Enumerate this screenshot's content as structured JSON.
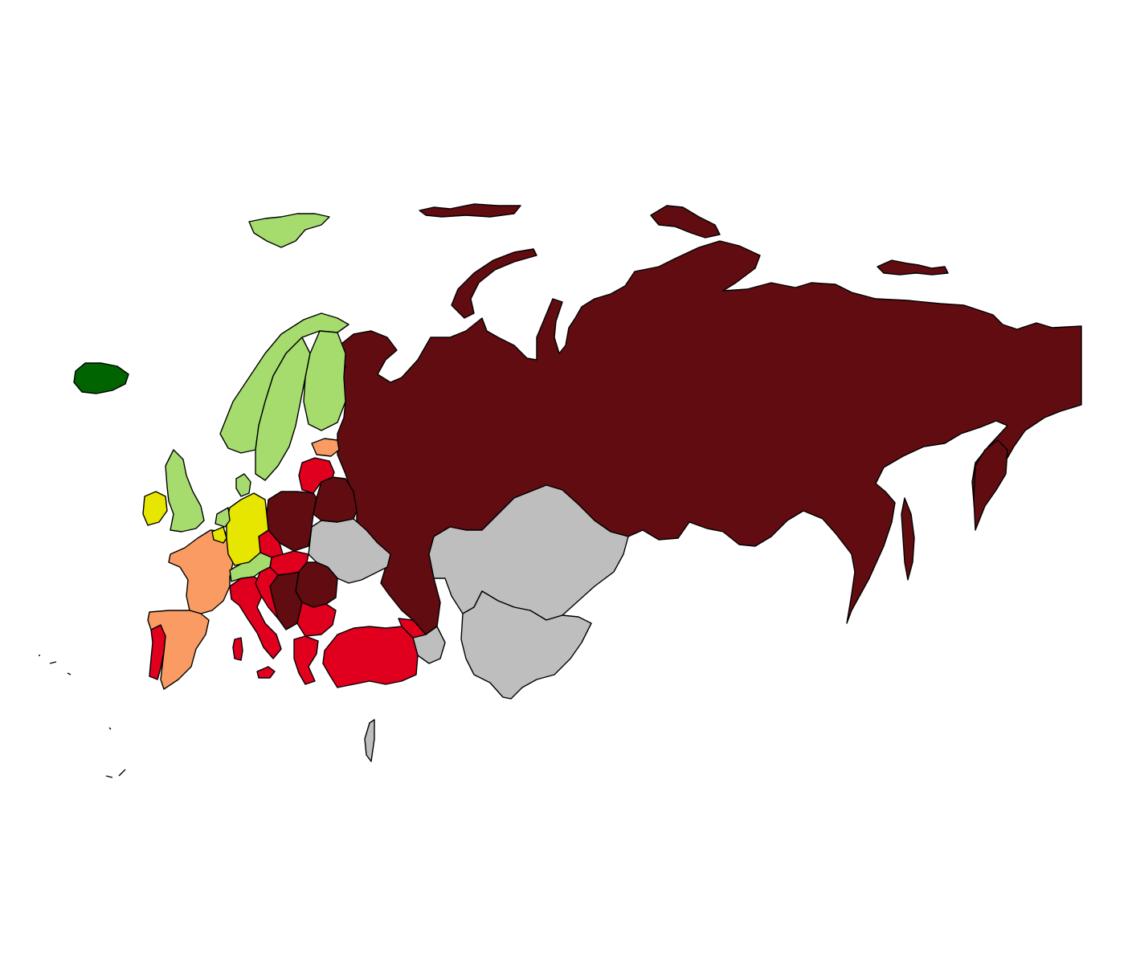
{
  "palette": {
    "dark_green": "#006400",
    "light_green": "#a6dc6e",
    "yellow": "#e6e600",
    "orange": "#f99b62",
    "red": "#e0001e",
    "dark_red": "#600c10",
    "no_data": "#bebebe",
    "border": "#000000",
    "background": "#ffffff"
  },
  "regions": [
    {
      "name": "russia",
      "fill": "dark_red"
    },
    {
      "name": "novaya-zemlya",
      "fill": "dark_red"
    },
    {
      "name": "franz-josef-land",
      "fill": "dark_red"
    },
    {
      "name": "severnaya-zemlya",
      "fill": "dark_red"
    },
    {
      "name": "new-siberian-islands",
      "fill": "dark_red"
    },
    {
      "name": "sakhalin",
      "fill": "dark_red"
    },
    {
      "name": "kamchatka",
      "fill": "dark_red"
    },
    {
      "name": "belarus",
      "fill": "dark_red"
    },
    {
      "name": "poland",
      "fill": "dark_red"
    },
    {
      "name": "romania",
      "fill": "dark_red"
    },
    {
      "name": "serbia",
      "fill": "dark_red"
    },
    {
      "name": "kazakhstan",
      "fill": "no_data"
    },
    {
      "name": "central-asia",
      "fill": "no_data"
    },
    {
      "name": "ukraine",
      "fill": "no_data"
    },
    {
      "name": "caucasus",
      "fill": "no_data"
    },
    {
      "name": "cyprus-israel",
      "fill": "no_data"
    },
    {
      "name": "turkey",
      "fill": "red"
    },
    {
      "name": "greece",
      "fill": "red"
    },
    {
      "name": "italy",
      "fill": "red"
    },
    {
      "name": "portugal",
      "fill": "red"
    },
    {
      "name": "baltics",
      "fill": "red"
    },
    {
      "name": "czechia",
      "fill": "red"
    },
    {
      "name": "hungary",
      "fill": "red"
    },
    {
      "name": "croatia",
      "fill": "red"
    },
    {
      "name": "bulgaria",
      "fill": "red"
    },
    {
      "name": "georgia",
      "fill": "red"
    },
    {
      "name": "sardinia",
      "fill": "red"
    },
    {
      "name": "sicily",
      "fill": "red"
    },
    {
      "name": "france",
      "fill": "orange"
    },
    {
      "name": "spain",
      "fill": "orange"
    },
    {
      "name": "estonia",
      "fill": "orange"
    },
    {
      "name": "germany",
      "fill": "yellow"
    },
    {
      "name": "ireland",
      "fill": "yellow"
    },
    {
      "name": "belgium",
      "fill": "yellow"
    },
    {
      "name": "norway",
      "fill": "light_green"
    },
    {
      "name": "sweden",
      "fill": "light_green"
    },
    {
      "name": "finland",
      "fill": "light_green"
    },
    {
      "name": "united-kingdom",
      "fill": "light_green"
    },
    {
      "name": "denmark",
      "fill": "light_green"
    },
    {
      "name": "netherlands",
      "fill": "light_green"
    },
    {
      "name": "switzerland-austria",
      "fill": "light_green"
    },
    {
      "name": "svalbard",
      "fill": "light_green"
    },
    {
      "name": "iceland",
      "fill": "dark_green"
    }
  ]
}
